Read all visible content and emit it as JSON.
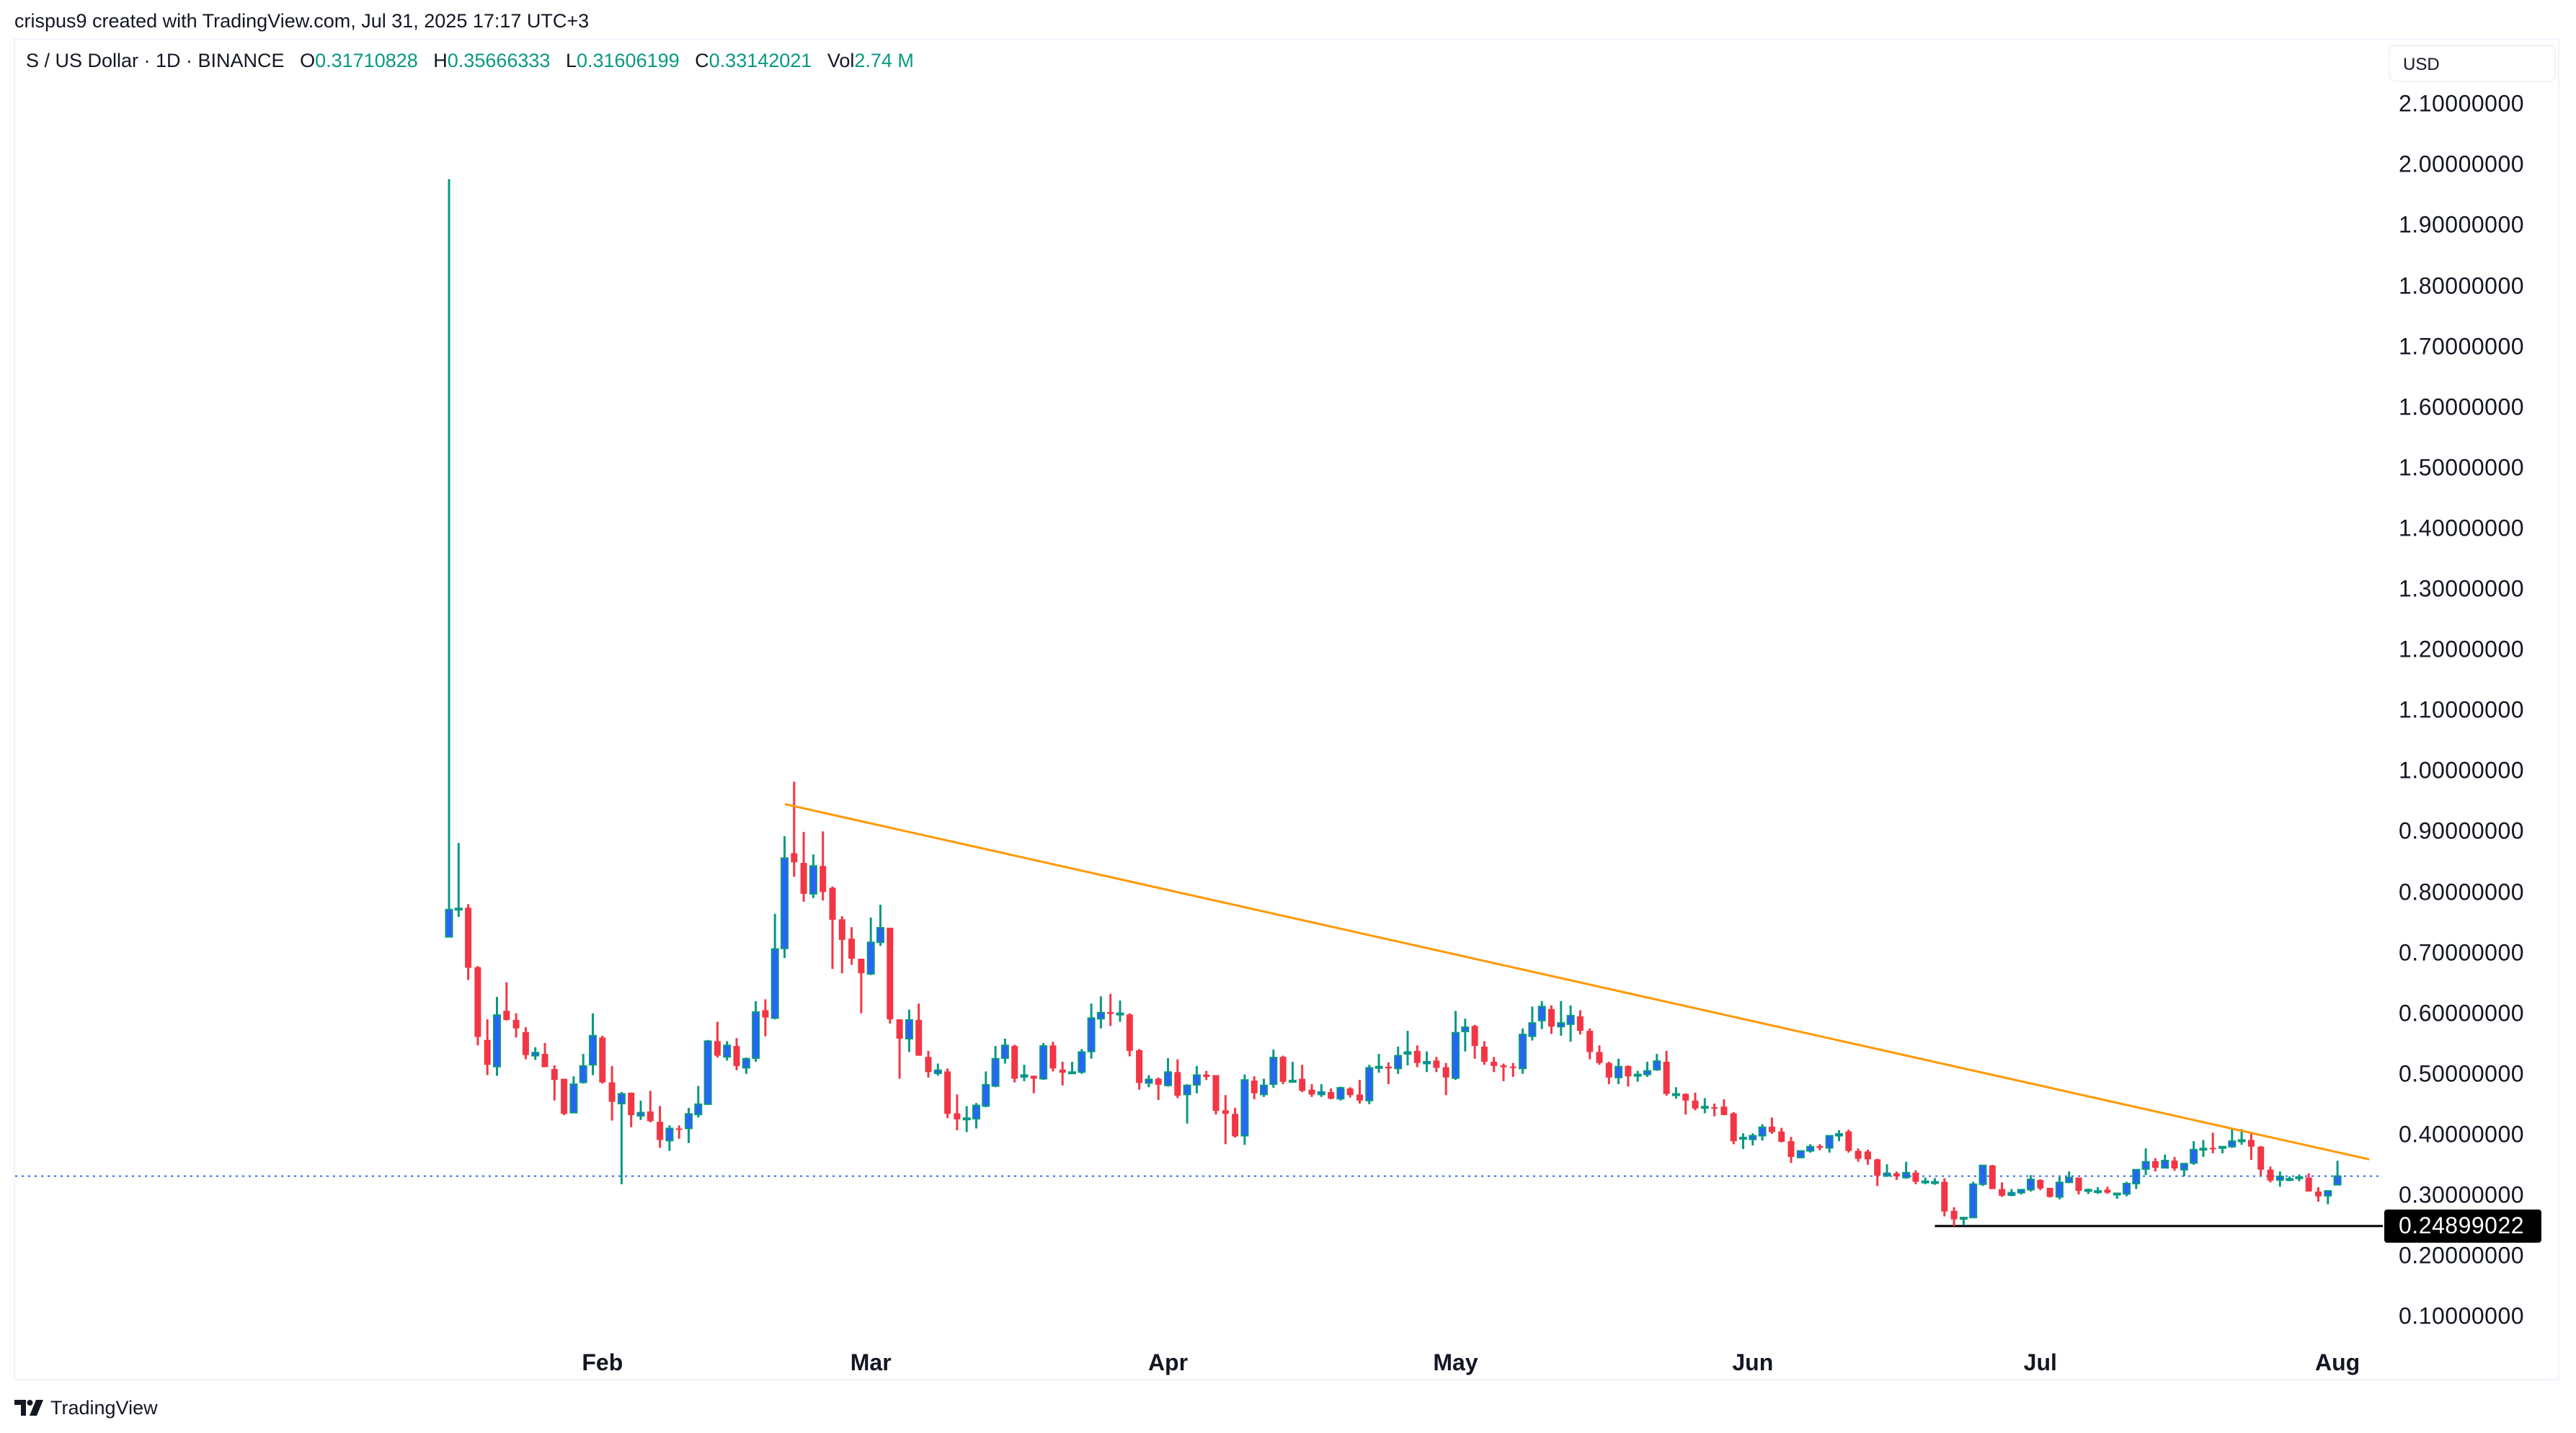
{
  "credit": "crispus9 created with TradingView.com, Jul 31, 2025 17:17 UTC+3",
  "legend": {
    "symbol": "S / US Dollar · 1D · BINANCE",
    "open_label": "O",
    "open": "0.31710828",
    "high_label": "H",
    "high": "0.35666333",
    "low_label": "L",
    "low": "0.31606199",
    "close_label": "C",
    "close": "0.33142021",
    "vol_label": "Vol",
    "vol": "2.74 M"
  },
  "currency": "USD",
  "horizontal_line_badge": "0.24899022",
  "brand": {
    "logo_icon": "tradingview-logo-icon",
    "name": "TradingView"
  },
  "colors": {
    "up_body": "#2962ff",
    "up_border": "#089981",
    "down": "#f23645",
    "trendline": "#ff9800",
    "last_price_line": "#2962ff",
    "horizontal_line": "#000000"
  },
  "chart_data": {
    "type": "candlestick",
    "title": "S / US Dollar · 1D · BINANCE",
    "xlabel": "",
    "ylabel": "USD",
    "ylim": [
      0.05,
      2.15
    ],
    "y_ticks": [
      "2.10000000",
      "2.00000000",
      "1.90000000",
      "1.80000000",
      "1.70000000",
      "1.60000000",
      "1.50000000",
      "1.40000000",
      "1.30000000",
      "1.20000000",
      "1.10000000",
      "1.00000000",
      "0.90000000",
      "0.80000000",
      "0.70000000",
      "0.60000000",
      "0.50000000",
      "0.40000000",
      "0.30000000",
      "0.20000000",
      "0.10000000"
    ],
    "x_ticks": [
      "Feb",
      "Mar",
      "Apr",
      "May",
      "Jun",
      "Jul",
      "Aug"
    ],
    "start_date": "2025-01-16",
    "end_date": "2025-07-31",
    "grid": false,
    "ohlc": [
      [
        0.726,
        1.976,
        0.726,
        0.771
      ],
      [
        0.773,
        0.881,
        0.759,
        0.773
      ],
      [
        0.774,
        0.78,
        0.655,
        0.675
      ],
      [
        0.676,
        0.678,
        0.547,
        0.561
      ],
      [
        0.556,
        0.59,
        0.498,
        0.515
      ],
      [
        0.512,
        0.627,
        0.497,
        0.597
      ],
      [
        0.604,
        0.651,
        0.588,
        0.589
      ],
      [
        0.589,
        0.6,
        0.56,
        0.575
      ],
      [
        0.569,
        0.577,
        0.524,
        0.531
      ],
      [
        0.53,
        0.544,
        0.523,
        0.535
      ],
      [
        0.533,
        0.551,
        0.511,
        0.511
      ],
      [
        0.508,
        0.514,
        0.456,
        0.49
      ],
      [
        0.492,
        0.492,
        0.432,
        0.434
      ],
      [
        0.436,
        0.496,
        0.436,
        0.483
      ],
      [
        0.486,
        0.533,
        0.484,
        0.513
      ],
      [
        0.515,
        0.6,
        0.498,
        0.563
      ],
      [
        0.56,
        0.563,
        0.484,
        0.486
      ],
      [
        0.486,
        0.513,
        0.423,
        0.454
      ],
      [
        0.451,
        0.47,
        0.318,
        0.467
      ],
      [
        0.469,
        0.469,
        0.412,
        0.432
      ],
      [
        0.431,
        0.456,
        0.424,
        0.436
      ],
      [
        0.438,
        0.472,
        0.42,
        0.422
      ],
      [
        0.421,
        0.447,
        0.378,
        0.391
      ],
      [
        0.39,
        0.415,
        0.373,
        0.41
      ],
      [
        0.41,
        0.415,
        0.393,
        0.409
      ],
      [
        0.41,
        0.444,
        0.386,
        0.434
      ],
      [
        0.433,
        0.48,
        0.428,
        0.45
      ],
      [
        0.45,
        0.556,
        0.45,
        0.554
      ],
      [
        0.554,
        0.586,
        0.527,
        0.53
      ],
      [
        0.528,
        0.554,
        0.522,
        0.547
      ],
      [
        0.546,
        0.559,
        0.506,
        0.513
      ],
      [
        0.51,
        0.527,
        0.5,
        0.525
      ],
      [
        0.526,
        0.62,
        0.52,
        0.602
      ],
      [
        0.605,
        0.623,
        0.562,
        0.593
      ],
      [
        0.592,
        0.764,
        0.59,
        0.706
      ],
      [
        0.707,
        0.892,
        0.691,
        0.856
      ],
      [
        0.864,
        0.982,
        0.825,
        0.849
      ],
      [
        0.848,
        0.899,
        0.784,
        0.797
      ],
      [
        0.797,
        0.862,
        0.79,
        0.843
      ],
      [
        0.843,
        0.9,
        0.786,
        0.8
      ],
      [
        0.807,
        0.809,
        0.673,
        0.754
      ],
      [
        0.755,
        0.76,
        0.666,
        0.721
      ],
      [
        0.723,
        0.742,
        0.68,
        0.69
      ],
      [
        0.69,
        0.69,
        0.6,
        0.666
      ],
      [
        0.665,
        0.758,
        0.663,
        0.717
      ],
      [
        0.717,
        0.779,
        0.711,
        0.741
      ],
      [
        0.741,
        0.741,
        0.583,
        0.59
      ],
      [
        0.59,
        0.59,
        0.492,
        0.558
      ],
      [
        0.558,
        0.606,
        0.536,
        0.589
      ],
      [
        0.589,
        0.616,
        0.53,
        0.53
      ],
      [
        0.528,
        0.538,
        0.494,
        0.503
      ],
      [
        0.501,
        0.517,
        0.497,
        0.506
      ],
      [
        0.504,
        0.509,
        0.427,
        0.434
      ],
      [
        0.435,
        0.466,
        0.407,
        0.425
      ],
      [
        0.427,
        0.447,
        0.404,
        0.427
      ],
      [
        0.426,
        0.452,
        0.41,
        0.448
      ],
      [
        0.447,
        0.504,
        0.445,
        0.482
      ],
      [
        0.48,
        0.546,
        0.478,
        0.525
      ],
      [
        0.526,
        0.558,
        0.517,
        0.547
      ],
      [
        0.546,
        0.548,
        0.486,
        0.492
      ],
      [
        0.495,
        0.515,
        0.488,
        0.498
      ],
      [
        0.497,
        0.497,
        0.468,
        0.492
      ],
      [
        0.492,
        0.551,
        0.49,
        0.546
      ],
      [
        0.547,
        0.553,
        0.504,
        0.509
      ],
      [
        0.507,
        0.52,
        0.481,
        0.502
      ],
      [
        0.503,
        0.52,
        0.5,
        0.503
      ],
      [
        0.503,
        0.541,
        0.5,
        0.536
      ],
      [
        0.537,
        0.616,
        0.525,
        0.592
      ],
      [
        0.591,
        0.628,
        0.575,
        0.601
      ],
      [
        0.602,
        0.632,
        0.579,
        0.599
      ],
      [
        0.6,
        0.621,
        0.586,
        0.6
      ],
      [
        0.598,
        0.6,
        0.529,
        0.538
      ],
      [
        0.539,
        0.541,
        0.474,
        0.485
      ],
      [
        0.485,
        0.498,
        0.478,
        0.491
      ],
      [
        0.492,
        0.494,
        0.457,
        0.482
      ],
      [
        0.481,
        0.526,
        0.479,
        0.503
      ],
      [
        0.503,
        0.524,
        0.46,
        0.464
      ],
      [
        0.466,
        0.483,
        0.418,
        0.481
      ],
      [
        0.482,
        0.513,
        0.468,
        0.498
      ],
      [
        0.499,
        0.505,
        0.49,
        0.495
      ],
      [
        0.498,
        0.498,
        0.433,
        0.439
      ],
      [
        0.44,
        0.465,
        0.384,
        0.434
      ],
      [
        0.434,
        0.444,
        0.395,
        0.397
      ],
      [
        0.398,
        0.499,
        0.383,
        0.49
      ],
      [
        0.489,
        0.496,
        0.458,
        0.468
      ],
      [
        0.466,
        0.492,
        0.462,
        0.481
      ],
      [
        0.483,
        0.54,
        0.477,
        0.527
      ],
      [
        0.528,
        0.53,
        0.483,
        0.487
      ],
      [
        0.489,
        0.52,
        0.487,
        0.489
      ],
      [
        0.492,
        0.515,
        0.47,
        0.472
      ],
      [
        0.474,
        0.483,
        0.462,
        0.466
      ],
      [
        0.466,
        0.483,
        0.462,
        0.47
      ],
      [
        0.47,
        0.476,
        0.458,
        0.459
      ],
      [
        0.459,
        0.479,
        0.456,
        0.477
      ],
      [
        0.476,
        0.478,
        0.461,
        0.465
      ],
      [
        0.466,
        0.49,
        0.451,
        0.456
      ],
      [
        0.456,
        0.515,
        0.45,
        0.51
      ],
      [
        0.512,
        0.533,
        0.502,
        0.512
      ],
      [
        0.512,
        0.519,
        0.483,
        0.509
      ],
      [
        0.509,
        0.545,
        0.5,
        0.53
      ],
      [
        0.533,
        0.571,
        0.514,
        0.536
      ],
      [
        0.538,
        0.547,
        0.511,
        0.518
      ],
      [
        0.517,
        0.537,
        0.503,
        0.52
      ],
      [
        0.522,
        0.528,
        0.503,
        0.51
      ],
      [
        0.511,
        0.518,
        0.465,
        0.494
      ],
      [
        0.493,
        0.604,
        0.49,
        0.568
      ],
      [
        0.57,
        0.591,
        0.537,
        0.577
      ],
      [
        0.579,
        0.581,
        0.525,
        0.546
      ],
      [
        0.545,
        0.554,
        0.515,
        0.52
      ],
      [
        0.52,
        0.528,
        0.503,
        0.513
      ],
      [
        0.514,
        0.517,
        0.488,
        0.511
      ],
      [
        0.512,
        0.518,
        0.495,
        0.511
      ],
      [
        0.509,
        0.575,
        0.5,
        0.565
      ],
      [
        0.562,
        0.611,
        0.555,
        0.584
      ],
      [
        0.588,
        0.62,
        0.574,
        0.611
      ],
      [
        0.607,
        0.613,
        0.566,
        0.578
      ],
      [
        0.578,
        0.62,
        0.563,
        0.584
      ],
      [
        0.582,
        0.613,
        0.553,
        0.596
      ],
      [
        0.595,
        0.605,
        0.565,
        0.571
      ],
      [
        0.571,
        0.575,
        0.524,
        0.536
      ],
      [
        0.536,
        0.547,
        0.515,
        0.518
      ],
      [
        0.518,
        0.52,
        0.483,
        0.494
      ],
      [
        0.494,
        0.525,
        0.483,
        0.512
      ],
      [
        0.513,
        0.514,
        0.479,
        0.496
      ],
      [
        0.499,
        0.505,
        0.487,
        0.499
      ],
      [
        0.499,
        0.52,
        0.495,
        0.505
      ],
      [
        0.507,
        0.533,
        0.505,
        0.521
      ],
      [
        0.52,
        0.538,
        0.464,
        0.467
      ],
      [
        0.467,
        0.478,
        0.459,
        0.467
      ],
      [
        0.467,
        0.468,
        0.433,
        0.456
      ],
      [
        0.456,
        0.469,
        0.44,
        0.443
      ],
      [
        0.446,
        0.46,
        0.435,
        0.446
      ],
      [
        0.445,
        0.451,
        0.43,
        0.444
      ],
      [
        0.446,
        0.458,
        0.432,
        0.432
      ],
      [
        0.435,
        0.437,
        0.384,
        0.389
      ],
      [
        0.395,
        0.402,
        0.376,
        0.395
      ],
      [
        0.392,
        0.402,
        0.382,
        0.398
      ],
      [
        0.398,
        0.417,
        0.39,
        0.412
      ],
      [
        0.413,
        0.428,
        0.401,
        0.404
      ],
      [
        0.405,
        0.411,
        0.387,
        0.388
      ],
      [
        0.389,
        0.396,
        0.353,
        0.363
      ],
      [
        0.362,
        0.373,
        0.361,
        0.373
      ],
      [
        0.373,
        0.384,
        0.37,
        0.38
      ],
      [
        0.381,
        0.384,
        0.374,
        0.378
      ],
      [
        0.378,
        0.398,
        0.37,
        0.398
      ],
      [
        0.398,
        0.407,
        0.389,
        0.401
      ],
      [
        0.405,
        0.408,
        0.37,
        0.373
      ],
      [
        0.373,
        0.377,
        0.355,
        0.36
      ],
      [
        0.372,
        0.375,
        0.35,
        0.359
      ],
      [
        0.359,
        0.36,
        0.315,
        0.332
      ],
      [
        0.332,
        0.351,
        0.33,
        0.336
      ],
      [
        0.336,
        0.339,
        0.325,
        0.331
      ],
      [
        0.329,
        0.355,
        0.327,
        0.337
      ],
      [
        0.337,
        0.341,
        0.318,
        0.322
      ],
      [
        0.323,
        0.329,
        0.318,
        0.323
      ],
      [
        0.322,
        0.328,
        0.317,
        0.322
      ],
      [
        0.322,
        0.328,
        0.265,
        0.273
      ],
      [
        0.274,
        0.28,
        0.249,
        0.26
      ],
      [
        0.263,
        0.263,
        0.25,
        0.263
      ],
      [
        0.263,
        0.322,
        0.262,
        0.318
      ],
      [
        0.318,
        0.349,
        0.315,
        0.349
      ],
      [
        0.349,
        0.35,
        0.31,
        0.31
      ],
      [
        0.31,
        0.321,
        0.297,
        0.299
      ],
      [
        0.3,
        0.31,
        0.298,
        0.304
      ],
      [
        0.304,
        0.31,
        0.301,
        0.309
      ],
      [
        0.309,
        0.333,
        0.306,
        0.326
      ],
      [
        0.325,
        0.326,
        0.308,
        0.311
      ],
      [
        0.312,
        0.312,
        0.296,
        0.297
      ],
      [
        0.297,
        0.33,
        0.293,
        0.321
      ],
      [
        0.321,
        0.339,
        0.32,
        0.329
      ],
      [
        0.329,
        0.329,
        0.301,
        0.307
      ],
      [
        0.309,
        0.311,
        0.302,
        0.309
      ],
      [
        0.307,
        0.313,
        0.302,
        0.307
      ],
      [
        0.309,
        0.314,
        0.302,
        0.304
      ],
      [
        0.303,
        0.304,
        0.294,
        0.303
      ],
      [
        0.302,
        0.322,
        0.298,
        0.319
      ],
      [
        0.319,
        0.342,
        0.31,
        0.342
      ],
      [
        0.343,
        0.377,
        0.333,
        0.355
      ],
      [
        0.356,
        0.361,
        0.339,
        0.345
      ],
      [
        0.345,
        0.367,
        0.344,
        0.357
      ],
      [
        0.357,
        0.363,
        0.34,
        0.344
      ],
      [
        0.342,
        0.352,
        0.331,
        0.352
      ],
      [
        0.353,
        0.389,
        0.35,
        0.375
      ],
      [
        0.375,
        0.391,
        0.363,
        0.377
      ],
      [
        0.378,
        0.403,
        0.369,
        0.377
      ],
      [
        0.378,
        0.38,
        0.369,
        0.38
      ],
      [
        0.38,
        0.411,
        0.378,
        0.389
      ],
      [
        0.391,
        0.409,
        0.383,
        0.391
      ],
      [
        0.391,
        0.402,
        0.358,
        0.38
      ],
      [
        0.38,
        0.381,
        0.332,
        0.342
      ],
      [
        0.342,
        0.347,
        0.321,
        0.324
      ],
      [
        0.325,
        0.339,
        0.314,
        0.331
      ],
      [
        0.327,
        0.331,
        0.323,
        0.327
      ],
      [
        0.33,
        0.334,
        0.323,
        0.33
      ],
      [
        0.329,
        0.336,
        0.306,
        0.306
      ],
      [
        0.306,
        0.313,
        0.289,
        0.298
      ],
      [
        0.299,
        0.307,
        0.285,
        0.307
      ],
      [
        0.3171,
        0.3567,
        0.3161,
        0.3314
      ]
    ],
    "trendline": {
      "from": {
        "date": "2025-02-20",
        "price": 0.945
      },
      "to": {
        "date": "2025-08-05",
        "price": 0.359
      },
      "color": "#ff9800"
    },
    "horizontal_line": {
      "from_date": "2025-06-20",
      "price": 0.24899022
    },
    "last_price_line": {
      "price": 0.33142021
    }
  }
}
